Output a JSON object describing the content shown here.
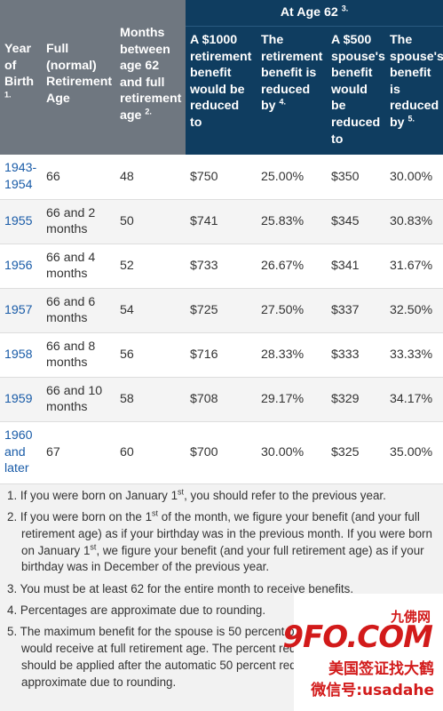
{
  "header": {
    "col_year": "Year of Birth",
    "col_year_sup": "1.",
    "col_fra": "Full (normal) Retirement Age",
    "col_months": "Months between age 62 and full retirement age",
    "col_months_sup": "2.",
    "group": "At Age 62",
    "group_sup": "3.",
    "col_1000": "A $1000 retirement benefit would be reduced to",
    "col_pct": "The retirement benefit is reduced by",
    "col_pct_sup": "4.",
    "col_500": "A $500 spouse's benefit would be reduced to",
    "col_spct": "The spouse's benefit is reduced by",
    "col_spct_sup": "5."
  },
  "rows": [
    {
      "year": "1943-1954",
      "fra": "66",
      "months": "48",
      "b1000": "$750",
      "pct": "25.00%",
      "b500": "$350",
      "spct": "30.00%"
    },
    {
      "year": "1955",
      "fra": "66 and 2 months",
      "months": "50",
      "b1000": "$741",
      "pct": "25.83%",
      "b500": "$345",
      "spct": "30.83%"
    },
    {
      "year": "1956",
      "fra": "66 and 4 months",
      "months": "52",
      "b1000": "$733",
      "pct": "26.67%",
      "b500": "$341",
      "spct": "31.67%"
    },
    {
      "year": "1957",
      "fra": "66 and 6 months",
      "months": "54",
      "b1000": "$725",
      "pct": "27.50%",
      "b500": "$337",
      "spct": "32.50%"
    },
    {
      "year": "1958",
      "fra": "66 and 8 months",
      "months": "56",
      "b1000": "$716",
      "pct": "28.33%",
      "b500": "$333",
      "spct": "33.33%"
    },
    {
      "year": "1959",
      "fra": "66 and 10 months",
      "months": "58",
      "b1000": "$708",
      "pct": "29.17%",
      "b500": "$329",
      "spct": "34.17%"
    },
    {
      "year": "1960 and later",
      "fra": "67",
      "months": "60",
      "b1000": "$700",
      "pct": "30.00%",
      "b500": "$325",
      "spct": "35.00%"
    }
  ],
  "notes": {
    "n1_a": "1. If you were born on January 1",
    "n1_b": ", you should refer to the previous year.",
    "n2_a": "2. If you were born on the 1",
    "n2_b": " of the month, we figure your benefit (and your full retirement age) as if your birthday was in the previous month. If you were born on January 1",
    "n2_c": ", we figure your benefit (and your full retirement age) as if your birthday was in December of the previous year.",
    "n3": "3. You must be at least 62 for the entire month to receive benefits.",
    "n4": "4. Percentages are approximate due to rounding.",
    "n5": "5. The maximum benefit for the spouse is 50 percent of the benefit the worker would receive at full retirement age. The percent reduction for the spouse should be applied after the automatic 50 percent reduction. Percentages are approximate due to rounding.",
    "st": "st"
  },
  "watermark": {
    "site": "九佛网",
    "logo": "9FO.COM",
    "line1": "美国签证找大鹤",
    "line2": "微信号:usadahe"
  },
  "colors": {
    "header_blue": "#0f3d60",
    "header_gray": "#6f7780",
    "link_blue": "#1a5ca8",
    "watermark_red": "#d21a1a"
  }
}
